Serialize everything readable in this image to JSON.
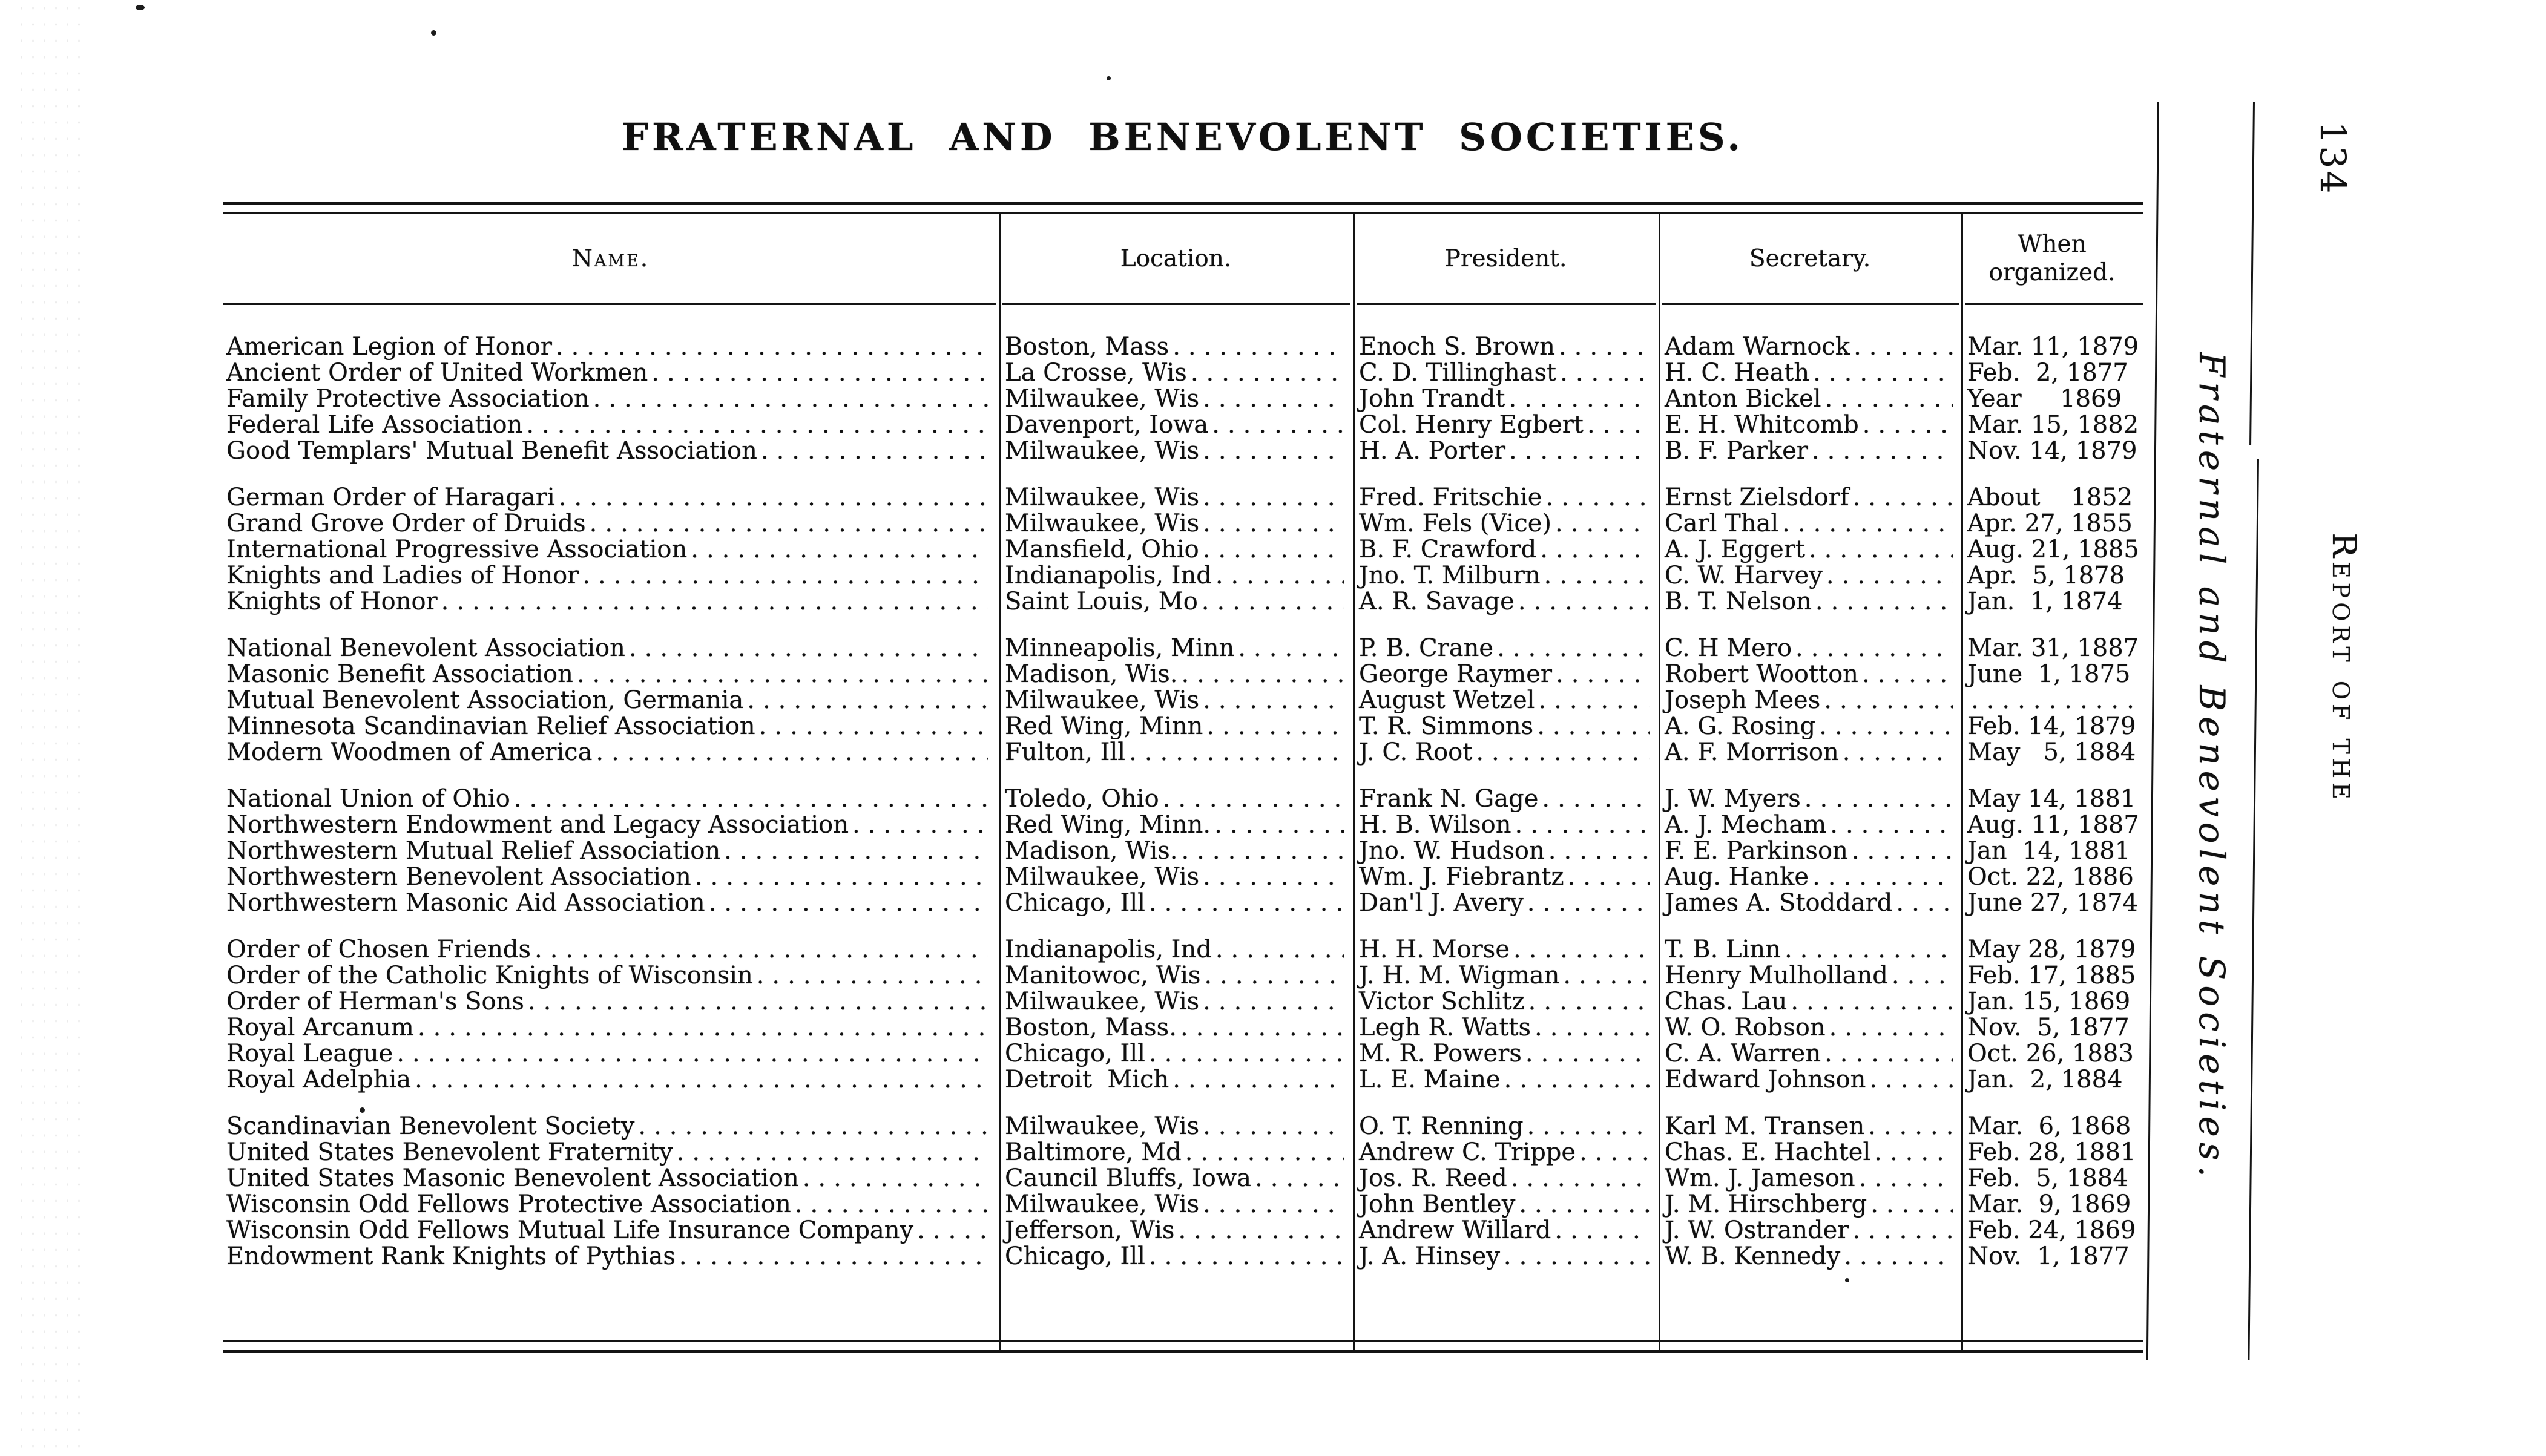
{
  "page": {
    "title": "FRATERNAL AND BENEVOLENT SOCIETIES."
  },
  "margin": {
    "running_title": "Fraternal and Benevolent Societies.",
    "report_label": "Report of the",
    "page_number": "134"
  },
  "table": {
    "headers": {
      "name": "Name.",
      "location": "Location.",
      "president": "President.",
      "secretary": "Secretary.",
      "organized_line1": "When",
      "organized_line2": "organized."
    },
    "groups": [
      {
        "rows": [
          {
            "name": "American Legion of Honor",
            "location": "Boston, Mass",
            "president": "Enoch S. Brown",
            "secretary": "Adam Warnock",
            "organized": "Mar. 11, 1879"
          },
          {
            "name": "Ancient Order of United Workmen",
            "location": "La Crosse, Wis",
            "president": "C. D. Tillinghast",
            "secretary": "H. C. Heath",
            "organized": "Feb.  2, 1877"
          },
          {
            "name": "Family Protective Association",
            "location": "Milwaukee, Wis",
            "president": "John Trandt",
            "secretary": "Anton Bickel",
            "organized": "Year     1869"
          },
          {
            "name": "Federal Life Association",
            "location": "Davenport, Iowa",
            "president": "Col. Henry Egbert",
            "secretary": "E. H. Whitcomb",
            "organized": "Mar. 15, 1882"
          },
          {
            "name": "Good Templars' Mutual Benefit Association",
            "location": "Milwaukee, Wis",
            "president": "H. A. Porter",
            "secretary": "B. F. Parker",
            "organized": "Nov. 14, 1879"
          }
        ]
      },
      {
        "rows": [
          {
            "name": "German Order of Haragari",
            "location": "Milwaukee, Wis",
            "president": "Fred. Fritschie",
            "secretary": "Ernst Zielsdorf",
            "organized": "About    1852"
          },
          {
            "name": "Grand Grove Order of Druids",
            "location": "Milwaukee, Wis",
            "president": "Wm. Fels (Vice)",
            "secretary": "Carl Thal",
            "organized": "Apr. 27, 1855"
          },
          {
            "name": "International Progressive Association",
            "location": "Mansfield, Ohio",
            "president": "B. F. Crawford",
            "secretary": "A. J. Eggert",
            "organized": "Aug. 21, 1885"
          },
          {
            "name": "Knights and Ladies of Honor",
            "location": "Indianapolis, Ind",
            "president": "Jno. T. Milburn",
            "secretary": "C. W. Harvey",
            "organized": "Apr.  5, 1878"
          },
          {
            "name": "Knights of Honor",
            "location": "Saint Louis, Mo",
            "president": "A. R. Savage",
            "secretary": "B. T. Nelson",
            "organized": "Jan.  1, 1874"
          }
        ]
      },
      {
        "rows": [
          {
            "name": "National Benevolent Association",
            "location": "Minneapolis, Minn",
            "president": "P. B. Crane",
            "secretary": "C. H Mero",
            "organized": "Mar. 31, 1887"
          },
          {
            "name": "Masonic Benefit Association",
            "location": "Madison, Wis.",
            "president": "George Raymer",
            "secretary": "Robert Wootton",
            "organized": "June  1, 1875"
          },
          {
            "name": "Mutual Benevolent Association, Germania",
            "location": "Milwaukee, Wis",
            "president": "August Wetzel",
            "secretary": "Joseph Mees",
            "organized": ""
          },
          {
            "name": "Minnesota Scandinavian Relief Association",
            "location": "Red Wing, Minn",
            "president": "T. R. Simmons",
            "secretary": "A. G. Rosing",
            "organized": "Feb. 14, 1879"
          },
          {
            "name": "Modern Woodmen of America",
            "location": "Fulton, Ill",
            "president": "J. C. Root",
            "secretary": "A. F. Morrison",
            "organized": "May   5, 1884"
          }
        ]
      },
      {
        "rows": [
          {
            "name": "National Union of Ohio",
            "location": "Toledo, Ohio",
            "president": "Frank N. Gage",
            "secretary": "J. W. Myers",
            "organized": "May 14, 1881"
          },
          {
            "name": "Northwestern Endowment and Legacy Association",
            "location": "Red Wing, Minn.",
            "president": "H. B. Wilson",
            "secretary": "A. J. Mecham",
            "organized": "Aug. 11, 1887"
          },
          {
            "name": "Northwestern Mutual Relief Association",
            "location": "Madison, Wis.",
            "president": "Jno. W. Hudson",
            "secretary": "F. E. Parkinson",
            "organized": "Jan  14, 1881"
          },
          {
            "name": "Northwestern Benevolent Association",
            "location": "Milwaukee, Wis",
            "president": "Wm. J. Fiebrantz",
            "secretary": "Aug. Hanke",
            "organized": "Oct. 22, 1886"
          },
          {
            "name": "Northwestern Masonic Aid Association",
            "location": "Chicago, Ill",
            "president": "Dan'l J. Avery",
            "secretary": "James A. Stoddard",
            "organized": "June 27, 1874"
          }
        ]
      },
      {
        "rows": [
          {
            "name": "Order of Chosen Friends",
            "location": "Indianapolis, Ind",
            "president": "H. H. Morse",
            "secretary": "T. B. Linn",
            "organized": "May 28, 1879"
          },
          {
            "name": "Order of the Catholic Knights of Wisconsin",
            "location": "Manitowoc, Wis",
            "president": "J. H. M. Wigman",
            "secretary": "Henry Mulholland",
            "organized": "Feb. 17, 1885"
          },
          {
            "name": "Order of Herman's Sons",
            "location": "Milwaukee, Wis",
            "president": "Victor Schlitz",
            "secretary": "Chas. Lau",
            "organized": "Jan. 15, 1869"
          },
          {
            "name": "Royal Arcanum",
            "location": "Boston, Mass.",
            "president": "Legh R. Watts",
            "secretary": "W. O. Robson",
            "organized": "Nov.  5, 1877"
          },
          {
            "name": "Royal League",
            "location": "Chicago, Ill",
            "president": "M. R. Powers",
            "secretary": "C. A. Warren",
            "organized": "Oct. 26, 1883"
          },
          {
            "name": "Royal Adelphia",
            "location": "Detroit  Mich",
            "president": "L. E. Maine",
            "secretary": "Edward Johnson",
            "organized": "Jan.  2, 1884"
          }
        ]
      },
      {
        "rows": [
          {
            "name": "Scandinavian Benevolent Society",
            "location": "Milwaukee, Wis",
            "president": "O. T. Renning",
            "secretary": "Karl M. Transen",
            "organized": "Mar.  6, 1868"
          },
          {
            "name": "United States Benevolent Fraternity",
            "location": "Baltimore, Md",
            "president": "Andrew C. Trippe",
            "secretary": "Chas. E. Hachtel",
            "organized": "Feb. 28, 1881"
          },
          {
            "name": "United States Masonic Benevolent Association",
            "location": "Cauncil Bluffs, Iowa",
            "president": "Jos. R. Reed",
            "secretary": "Wm. J. Jameson",
            "organized": "Feb.  5, 1884"
          },
          {
            "name": "Wisconsin Odd Fellows Protective Association",
            "location": "Milwaukee, Wis",
            "president": "John Bentley",
            "secretary": "J. M. Hirschberg",
            "organized": "Mar.  9, 1869"
          },
          {
            "name": "Wisconsin Odd Fellows Mutual Life Insurance Company",
            "location": "Jefferson, Wis",
            "president": "Andrew Willard",
            "secretary": "J. W. Ostrander",
            "organized": "Feb. 24, 1869"
          },
          {
            "name": "Endowment Rank Knights of Pythias",
            "location": "Chicago, Ill",
            "president": "J. A. Hinsey",
            "secretary": "W. B. Kennedy",
            "organized": "Nov.  1, 1877"
          }
        ]
      }
    ]
  }
}
